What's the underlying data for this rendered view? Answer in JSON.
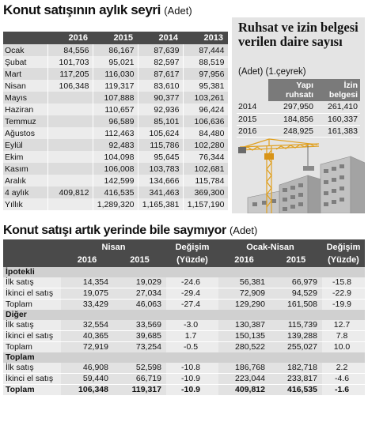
{
  "headline1": {
    "title": "Konut satışının aylık seyri",
    "unit": "(Adet)"
  },
  "monthly": {
    "columns": [
      "",
      "2016",
      "2015",
      "2014",
      "2013"
    ],
    "rows": [
      {
        "month": "Ocak",
        "v": [
          "84,556",
          "86,167",
          "87,639",
          "87,444"
        ]
      },
      {
        "month": "Şubat",
        "v": [
          "101,703",
          "95,021",
          "82,597",
          "88,519"
        ]
      },
      {
        "month": "Mart",
        "v": [
          "117,205",
          "116,030",
          "87,617",
          "97,956"
        ]
      },
      {
        "month": "Nisan",
        "v": [
          "106,348",
          "119,317",
          "83,610",
          "95,381"
        ]
      },
      {
        "month": "Mayıs",
        "v": [
          "",
          "107,888",
          "90,377",
          "103,261"
        ]
      },
      {
        "month": "Haziran",
        "v": [
          "",
          "110,657",
          "92,936",
          "96,424"
        ]
      },
      {
        "month": "Temmuz",
        "v": [
          "",
          "96,589",
          "85,101",
          "106,636"
        ]
      },
      {
        "month": "Ağustos",
        "v": [
          "",
          "112,463",
          "105,624",
          "84,480"
        ]
      },
      {
        "month": "Eylül",
        "v": [
          "",
          "92,483",
          "115,786",
          "102,280"
        ]
      },
      {
        "month": "Ekim",
        "v": [
          "",
          "104,098",
          "95,645",
          "76,344"
        ]
      },
      {
        "month": "Kasım",
        "v": [
          "",
          "106,008",
          "103,783",
          "102,681"
        ]
      },
      {
        "month": "Aralık",
        "v": [
          "",
          "142,599",
          "134,666",
          "115,784"
        ]
      },
      {
        "month": "4 aylık",
        "v": [
          "409,812",
          "416,535",
          "341,463",
          "369,300"
        ]
      },
      {
        "month": "Yıllık",
        "v": [
          "",
          "1,289,320",
          "1,165,381",
          "1,157,190"
        ]
      }
    ]
  },
  "permit": {
    "title": "Ruhsat ve izin belgesi verilen daire sayısı",
    "subtitle": "(Adet) (1.çeyrek)",
    "col1a": "Yapı",
    "col1b": "ruhsatı",
    "col2a": "İzin",
    "col2b": "belgesi",
    "rows": [
      {
        "year": "2014",
        "ruhsat": "297,950",
        "izin": "261,410"
      },
      {
        "year": "2015",
        "ruhsat": "184,856",
        "izin": "160,337"
      },
      {
        "year": "2016",
        "ruhsat": "248,925",
        "izin": "161,383"
      }
    ]
  },
  "headline2": {
    "title": "Konut satışı artık yerinde bile saymıyor",
    "unit": "(Adet)"
  },
  "comparison": {
    "nisan": "Nisan",
    "ocak_nisan": "Ocak-Nisan",
    "degisim": "Değişim",
    "yuzde": "(Yüzde)",
    "y2016": "2016",
    "y2015": "2015",
    "groups": [
      {
        "name": "İpotekli",
        "rows": [
          {
            "label": "İlk satış",
            "v": [
              "14,354",
              "19,029",
              "-24.6",
              "56,381",
              "66,979",
              "-15.8"
            ]
          },
          {
            "label": "İkinci el satış",
            "v": [
              "19,075",
              "27,034",
              "-29.4",
              "72,909",
              "94,529",
              "-22.9"
            ]
          },
          {
            "label": "Toplam",
            "v": [
              "33,429",
              "46,063",
              "-27.4",
              "129,290",
              "161,508",
              "-19.9"
            ]
          }
        ]
      },
      {
        "name": "Diğer",
        "rows": [
          {
            "label": "İlk satış",
            "v": [
              "32,554",
              "33,569",
              "-3.0",
              "130,387",
              "115,739",
              "12.7"
            ]
          },
          {
            "label": "İkinci el satış",
            "v": [
              "40,365",
              "39,685",
              "1.7",
              "150,135",
              "139,288",
              "7.8"
            ]
          },
          {
            "label": "Toplam",
            "v": [
              "72,919",
              "73,254",
              "-0.5",
              "280,522",
              "255,027",
              "10.0"
            ]
          }
        ]
      },
      {
        "name": "Toplam",
        "rows": [
          {
            "label": "İlk satış",
            "v": [
              "46,908",
              "52,598",
              "-10.8",
              "186,768",
              "182,718",
              "2.2"
            ]
          },
          {
            "label": "İkinci el satış",
            "v": [
              "59,440",
              "66,719",
              "-10.9",
              "223,044",
              "233,817",
              "-4.6"
            ]
          },
          {
            "label": "Toplam",
            "v": [
              "106,348",
              "119,317",
              "-10.9",
              "409,812",
              "416,535",
              "-1.6"
            ]
          }
        ]
      }
    ]
  }
}
